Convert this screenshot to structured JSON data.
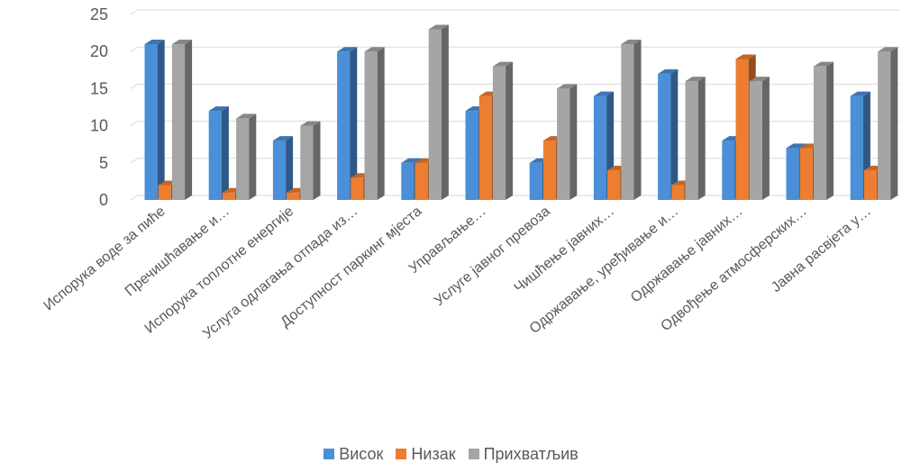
{
  "chart_data": {
    "type": "bar",
    "title": "",
    "xlabel": "",
    "ylabel": "",
    "ylim": [
      0,
      25
    ],
    "yticks": [
      0,
      5,
      10,
      15,
      20,
      25
    ],
    "grid": true,
    "legend_position": "bottom",
    "categories": [
      "Испорука воде за пиће",
      "Пречишћавање и…",
      "Испорука топлотне енергије",
      "Услуга одлагања отпада из…",
      "Доступност паркинг мјеста",
      "Управљање…",
      "Услуге јавног превоза",
      "Чишћење јавних…",
      "Одржавање, уређивање и…",
      "Одржавање јавних…",
      "Одвођење атмосферских…",
      "Јавна расвјета у…"
    ],
    "series": [
      {
        "name": "Висок",
        "color": "#4a8fd8",
        "values": [
          21,
          12,
          8,
          20,
          5,
          12,
          5,
          14,
          17,
          8,
          7,
          14
        ]
      },
      {
        "name": "Низак",
        "color": "#ed7d31",
        "values": [
          2,
          1,
          1,
          3,
          5,
          14,
          8,
          4,
          2,
          19,
          7,
          4
        ]
      },
      {
        "name": "Прихватљив",
        "color": "#a5a5a5",
        "values": [
          21,
          11,
          10,
          20,
          23,
          18,
          15,
          21,
          16,
          16,
          18,
          20
        ]
      }
    ]
  }
}
